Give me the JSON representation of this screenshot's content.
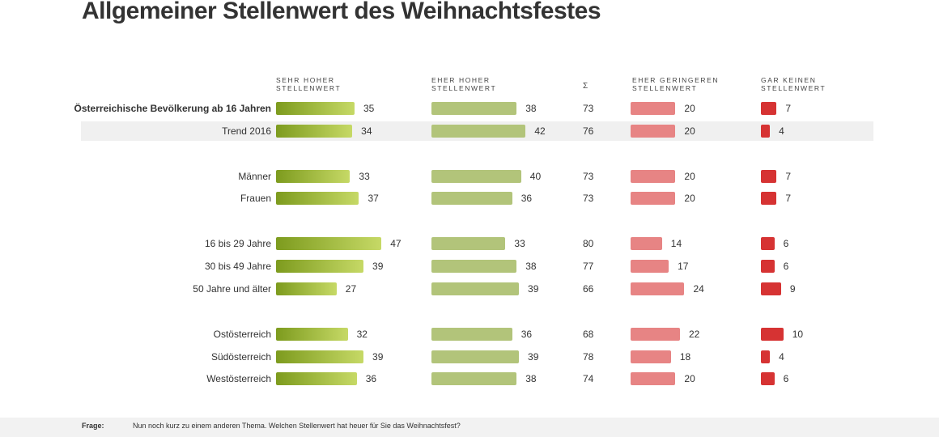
{
  "chart_data": {
    "type": "bar",
    "title": "Allgemeiner Stellenwert des Weihnachtsfestes",
    "columns": [
      {
        "key": "sehr_hoher",
        "label": "SEHR HOHER\nSTELLENWERT",
        "color": "#8aa82a"
      },
      {
        "key": "eher_hoher",
        "label": "EHER HOHER\nSTELLENWERT",
        "color": "#b2c47a"
      },
      {
        "key": "sum",
        "label": "Σ"
      },
      {
        "key": "eher_geringeren",
        "label": "EHER GERINGEREN\nSTELLENWERT",
        "color": "#e78484"
      },
      {
        "key": "gar_keinen",
        "label": "GAR KEINEN\nSTELLENWERT",
        "color": "#d63333"
      }
    ],
    "rows": [
      {
        "label": "Österreichische Bevölkerung ab 16 Jahren",
        "bold": true,
        "values": [
          35,
          38,
          73,
          20,
          7
        ]
      },
      {
        "label": "Trend 2016",
        "shaded": true,
        "values": [
          34,
          42,
          76,
          20,
          4
        ]
      },
      {
        "label": "Männer",
        "values": [
          33,
          40,
          73,
          20,
          7
        ]
      },
      {
        "label": "Frauen",
        "values": [
          37,
          36,
          73,
          20,
          7
        ]
      },
      {
        "label": "16 bis 29 Jahre",
        "values": [
          47,
          33,
          80,
          14,
          6
        ]
      },
      {
        "label": "30 bis 49 Jahre",
        "values": [
          39,
          38,
          77,
          17,
          6
        ]
      },
      {
        "label": "50 Jahre und älter",
        "values": [
          27,
          39,
          66,
          24,
          9
        ]
      },
      {
        "label": "Ostösterreich",
        "values": [
          32,
          36,
          68,
          22,
          10
        ]
      },
      {
        "label": "Südösterreich",
        "values": [
          39,
          39,
          78,
          18,
          4
        ]
      },
      {
        "label": "Westösterreich",
        "values": [
          36,
          38,
          74,
          20,
          6
        ]
      }
    ],
    "groups": [
      [
        0,
        1
      ],
      [
        2,
        3
      ],
      [
        4,
        5,
        6
      ],
      [
        7,
        8,
        9
      ]
    ],
    "unit": "%"
  },
  "footer": {
    "label": "Frage:",
    "question": "Nun noch kurz zu einem anderen Thema. Welchen Stellenwert hat heuer für Sie das Weihnachtsfest?"
  }
}
